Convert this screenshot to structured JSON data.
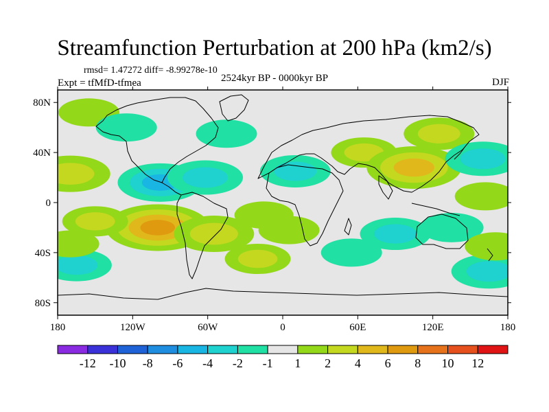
{
  "chart_data": {
    "type": "heatmap",
    "title": "Streamfunction Perturbation at 200 hPa (km2/s)",
    "subtitle_stats": "rmsd= 1.47272  diff= -8.99278e-10",
    "experiment_label": "Expt = tfMfD-tfmea",
    "period_label": "2524kyr BP - 0000kyr BP",
    "season_label": "DJF",
    "projection": "cylindrical equidistant",
    "xlim": [
      -180,
      180
    ],
    "ylim": [
      -90,
      90
    ],
    "x_ticks": [
      {
        "value": -180,
        "label": "180"
      },
      {
        "value": -120,
        "label": "120W"
      },
      {
        "value": -60,
        "label": "60W"
      },
      {
        "value": 0,
        "label": "0"
      },
      {
        "value": 60,
        "label": "60E"
      },
      {
        "value": 120,
        "label": "120E"
      },
      {
        "value": 180,
        "label": "180"
      }
    ],
    "y_ticks": [
      {
        "value": 80,
        "label": "80N"
      },
      {
        "value": 40,
        "label": "40N"
      },
      {
        "value": 0,
        "label": "0"
      },
      {
        "value": -40,
        "label": "40S"
      },
      {
        "value": -80,
        "label": "80S"
      }
    ],
    "colorbar": {
      "colors": [
        "#8a2be2",
        "#3a32d8",
        "#1f62d8",
        "#1f8ee0",
        "#1ab6e3",
        "#1fd1cf",
        "#20e0a3",
        "#e6e6e6",
        "#94d81a",
        "#c3d81f",
        "#e0b81c",
        "#e09a10",
        "#e6731c",
        "#e6501c",
        "#e01414"
      ],
      "labels": [
        "-12",
        "-10",
        "-8",
        "-6",
        "-4",
        "-2",
        "-1",
        "1",
        "2",
        "4",
        "6",
        "8",
        "10",
        "12"
      ],
      "levels": [
        -12,
        -10,
        -8,
        -6,
        -4,
        -2,
        -1,
        1,
        2,
        4,
        6,
        8,
        10,
        12
      ]
    },
    "anomalies": [
      {
        "lon": -155,
        "lat": 72,
        "value": 1.5
      },
      {
        "lon": -170,
        "lat": 23,
        "value": 3.5
      },
      {
        "lon": -125,
        "lat": 60,
        "value": -1.5
      },
      {
        "lon": -98,
        "lat": 16,
        "value": -4
      },
      {
        "lon": -62,
        "lat": 20,
        "value": -3
      },
      {
        "lon": -45,
        "lat": 55,
        "value": -1.5
      },
      {
        "lon": -100,
        "lat": -20,
        "value": 6
      },
      {
        "lon": -150,
        "lat": -15,
        "value": 2
      },
      {
        "lon": -55,
        "lat": -25,
        "value": 3.5
      },
      {
        "lon": -15,
        "lat": -10,
        "value": 1.3
      },
      {
        "lon": 10,
        "lat": 25,
        "value": -2.5
      },
      {
        "lon": 5,
        "lat": -22,
        "value": 1.5
      },
      {
        "lon": 65,
        "lat": 40,
        "value": 2
      },
      {
        "lon": 105,
        "lat": 28,
        "value": 5
      },
      {
        "lon": 125,
        "lat": 55,
        "value": 2.5
      },
      {
        "lon": 160,
        "lat": 35,
        "value": -3
      },
      {
        "lon": 162,
        "lat": 5,
        "value": 1.5
      },
      {
        "lon": 90,
        "lat": -25,
        "value": -2.5
      },
      {
        "lon": 135,
        "lat": -20,
        "value": -1.8
      },
      {
        "lon": 55,
        "lat": -40,
        "value": -1.5
      },
      {
        "lon": -20,
        "lat": -45,
        "value": 2
      },
      {
        "lon": -165,
        "lat": -50,
        "value": -2.5
      },
      {
        "lon": 165,
        "lat": -55,
        "value": -3
      },
      {
        "lon": 170,
        "lat": -35,
        "value": 1.5
      },
      {
        "lon": -170,
        "lat": -33,
        "value": 1.2
      }
    ]
  }
}
